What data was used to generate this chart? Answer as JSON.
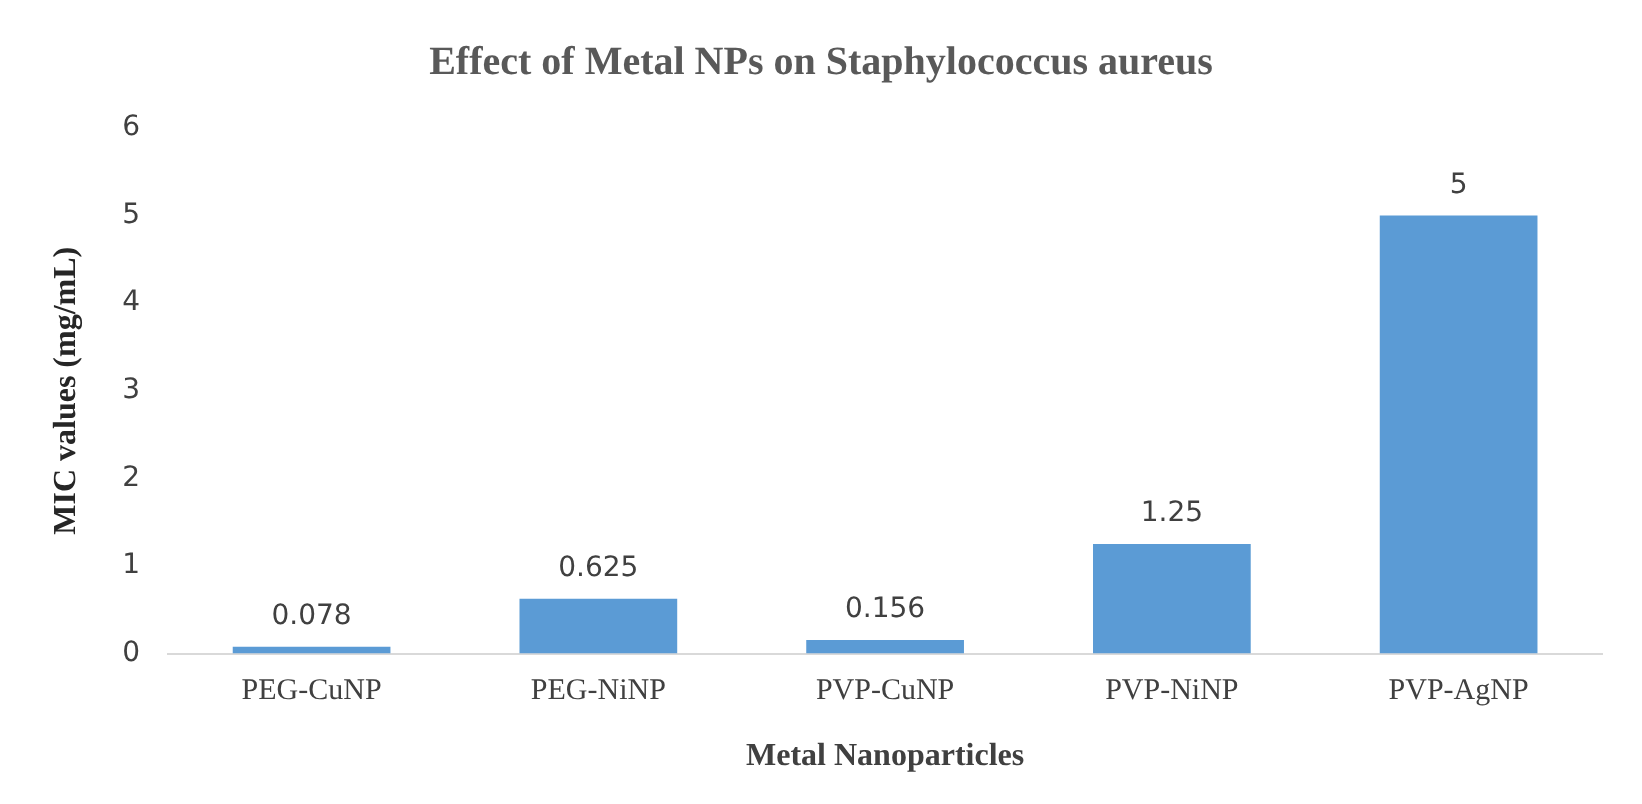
{
  "chart_data": {
    "type": "bar",
    "title": "Effect of Metal NPs on Staphylococcus aureus",
    "xlabel": "Metal Nanoparticles",
    "ylabel": "MIC values (mg/mL)",
    "categories": [
      "PEG-CuNP",
      "PEG-NiNP",
      "PVP-CuNP",
      "PVP-NiNP",
      "PVP-AgNP"
    ],
    "values": [
      0.078,
      0.625,
      0.156,
      1.25,
      5
    ],
    "color": "#5b9bd5",
    "ylim": [
      0,
      6
    ],
    "yticks": [
      0,
      1,
      2,
      3,
      4,
      5,
      6
    ],
    "grid": false,
    "legend": false,
    "data_labels": true
  }
}
